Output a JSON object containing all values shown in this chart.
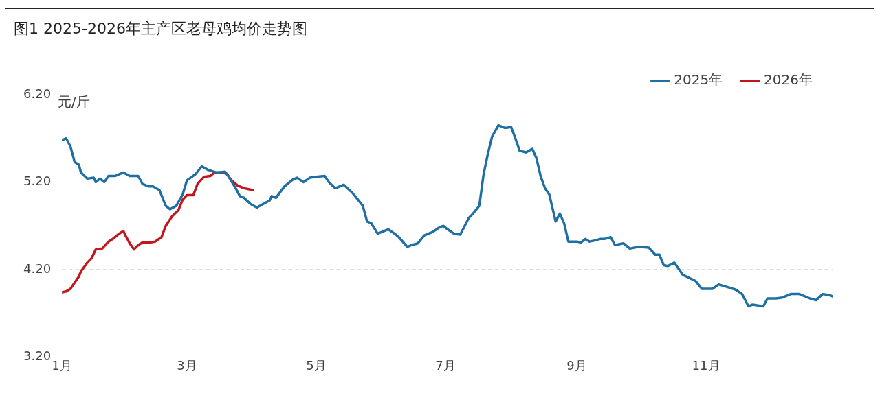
{
  "chart_data": {
    "type": "line",
    "title": "图1 2025-2026年主产区老母鸡均价走势图",
    "ylabel": "元/斤",
    "xlim": [
      "--01-01",
      "--12-31"
    ],
    "xticks": [
      {
        "value": "--01-01",
        "label": "1月"
      },
      {
        "value": "--03-01",
        "label": "3月"
      },
      {
        "value": "--05-01",
        "label": "5月"
      },
      {
        "value": "--07-01",
        "label": "7月"
      },
      {
        "value": "--09-01",
        "label": "9月"
      },
      {
        "value": "--11-01",
        "label": "11月"
      }
    ],
    "ylim": [
      3.2,
      6.2
    ],
    "yticks": [
      {
        "value": 3.2,
        "label": "3.20"
      },
      {
        "value": 4.2,
        "label": "4.20"
      },
      {
        "value": 5.2,
        "label": "5.20"
      },
      {
        "value": 6.2,
        "label": "6.20"
      }
    ],
    "grid": "y",
    "legend": "top right",
    "marker": "none",
    "line_style": "solid",
    "series": [
      {
        "name": "2025年",
        "color": "#1f6fa3",
        "x": [
          "--01-01",
          "--01-03",
          "--01-05",
          "--01-07",
          "--01-09",
          "--01-10",
          "--01-13",
          "--01-16",
          "--01-17",
          "--01-19",
          "--01-21",
          "--01-23",
          "--01-26",
          "--01-30",
          "--02-02",
          "--02-06",
          "--02-08",
          "--02-11",
          "--02-13",
          "--02-16",
          "--02-19",
          "--02-21",
          "--02-24",
          "--02-27",
          "--03-01",
          "--03-05",
          "--03-08",
          "--03-11",
          "--03-15",
          "--03-19",
          "--03-21",
          "--03-24",
          "--03-26",
          "--03-28",
          "--03-31",
          "--04-03",
          "--04-06",
          "--04-09",
          "--04-10",
          "--04-12",
          "--04-16",
          "--04-20",
          "--04-22",
          "--04-25",
          "--04-28",
          "--05-01",
          "--05-05",
          "--05-07",
          "--05-10",
          "--05-12",
          "--05-14",
          "--05-18",
          "--05-20",
          "--05-23",
          "--05-25",
          "--05-27",
          "--05-30",
          "--06-01",
          "--06-04",
          "--06-07",
          "--06-09",
          "--06-13",
          "--06-15",
          "--06-18",
          "--06-21",
          "--06-25",
          "--06-28",
          "--06-30",
          "--07-02",
          "--07-05",
          "--07-08",
          "--07-12",
          "--07-14",
          "--07-17",
          "--07-19",
          "--07-21",
          "--07-23",
          "--07-26",
          "--07-29",
          "--08-01",
          "--08-03",
          "--08-05",
          "--08-08",
          "--08-11",
          "--08-13",
          "--08-15",
          "--08-17",
          "--08-19",
          "--08-22",
          "--08-24",
          "--08-26",
          "--08-28",
          "--09-01",
          "--09-03",
          "--09-05",
          "--09-07",
          "--09-09",
          "--09-12",
          "--09-14",
          "--09-17",
          "--09-19",
          "--09-23",
          "--09-26",
          "--09-30",
          "--10-05",
          "--10-08",
          "--10-10",
          "--10-12",
          "--10-14",
          "--10-17",
          "--10-21",
          "--10-27",
          "--10-30",
          "--11-04",
          "--11-07",
          "--11-11",
          "--11-15",
          "--11-18",
          "--11-21",
          "--11-23",
          "--11-28",
          "--11-30",
          "--12-04",
          "--12-07",
          "--12-11",
          "--12-15",
          "--12-20",
          "--12-23",
          "--12-26",
          "--12-29",
          "--12-31"
        ],
        "values": [
          5.68,
          5.7,
          5.61,
          5.43,
          5.4,
          5.31,
          5.24,
          5.25,
          5.2,
          5.24,
          5.2,
          5.27,
          5.27,
          5.31,
          5.27,
          5.27,
          5.18,
          5.15,
          5.15,
          5.11,
          4.93,
          4.89,
          4.93,
          5.06,
          5.22,
          5.29,
          5.38,
          5.34,
          5.31,
          5.32,
          5.25,
          5.13,
          5.04,
          5.02,
          4.95,
          4.91,
          4.95,
          4.99,
          5.04,
          5.02,
          5.15,
          5.23,
          5.25,
          5.2,
          5.25,
          5.26,
          5.27,
          5.2,
          5.13,
          5.15,
          5.17,
          5.08,
          5.02,
          4.93,
          4.75,
          4.73,
          4.61,
          4.63,
          4.66,
          4.61,
          4.57,
          4.46,
          4.48,
          4.5,
          4.59,
          4.63,
          4.68,
          4.7,
          4.66,
          4.61,
          4.6,
          4.79,
          4.84,
          4.93,
          5.29,
          5.52,
          5.72,
          5.85,
          5.82,
          5.83,
          5.7,
          5.56,
          5.54,
          5.58,
          5.47,
          5.26,
          5.13,
          5.06,
          4.75,
          4.84,
          4.73,
          4.52,
          4.52,
          4.51,
          4.55,
          4.52,
          4.53,
          4.55,
          4.55,
          4.57,
          4.48,
          4.5,
          4.44,
          4.46,
          4.45,
          4.37,
          4.37,
          4.25,
          4.24,
          4.28,
          4.14,
          4.07,
          3.98,
          3.98,
          4.03,
          4.0,
          3.97,
          3.92,
          3.78,
          3.8,
          3.78,
          3.87,
          3.87,
          3.88,
          3.92,
          3.92,
          3.87,
          3.85,
          3.92,
          3.91,
          3.89
        ]
      },
      {
        "name": "2026年",
        "color": "#c0161c",
        "x": [
          "--01-01",
          "--01-03",
          "--01-05",
          "--01-07",
          "--01-09",
          "--01-10",
          "--01-13",
          "--01-15",
          "--01-17",
          "--01-20",
          "--01-23",
          "--01-25",
          "--01-28",
          "--01-30",
          "--01-31",
          "--02-02",
          "--02-04",
          "--02-06",
          "--02-08",
          "--02-11",
          "--02-14",
          "--02-17",
          "--02-19",
          "--02-22",
          "--02-25",
          "--02-27",
          "--03-01",
          "--03-04",
          "--03-06",
          "--03-09",
          "--03-12",
          "--03-14",
          "--03-18",
          "--03-20",
          "--03-22",
          "--03-25",
          "--03-28",
          "--04-01"
        ],
        "values": [
          3.94,
          3.95,
          3.98,
          4.05,
          4.12,
          4.18,
          4.28,
          4.33,
          4.43,
          4.44,
          4.52,
          4.55,
          4.61,
          4.64,
          4.59,
          4.5,
          4.43,
          4.48,
          4.51,
          4.51,
          4.52,
          4.57,
          4.7,
          4.81,
          4.88,
          5.0,
          5.05,
          5.05,
          5.18,
          5.26,
          5.27,
          5.31,
          5.31,
          5.29,
          5.22,
          5.16,
          5.13,
          5.11
        ]
      }
    ]
  }
}
